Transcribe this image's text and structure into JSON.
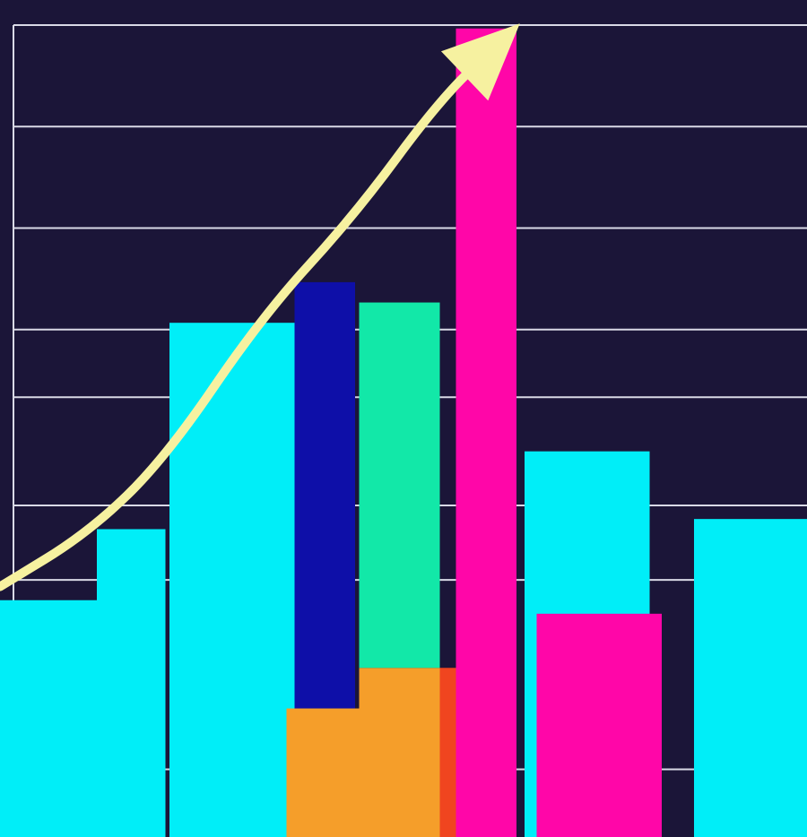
{
  "chart_data": {
    "type": "bar",
    "title": "",
    "xlabel": "",
    "ylabel": "",
    "ylim": [
      0,
      12
    ],
    "grid": true,
    "legend": "none",
    "gridlines": [
      1,
      3.8,
      4.9,
      6.5,
      7.5,
      9.0,
      10.5,
      12.0
    ],
    "bars": [
      {
        "x0": 0.0,
        "x1": 1.2,
        "bottom": 0,
        "value": 3.5,
        "color": "#00eef8"
      },
      {
        "x0": 1.2,
        "x1": 2.05,
        "bottom": 0,
        "value": 4.55,
        "color": "#00eef8"
      },
      {
        "x0": 2.1,
        "x1": 3.65,
        "bottom": 0,
        "value": 7.6,
        "color": "#00eef8"
      },
      {
        "x0": 3.65,
        "x1": 4.4,
        "bottom": 1.9,
        "value": 6.3,
        "color": "#0e0fa8"
      },
      {
        "x0": 3.55,
        "x1": 4.45,
        "bottom": 0,
        "value": 1.9,
        "color": "#f59e2a"
      },
      {
        "x0": 4.45,
        "x1": 5.45,
        "bottom": 0,
        "value": 2.5,
        "color": "#f59e2a"
      },
      {
        "x0": 4.45,
        "x1": 5.45,
        "bottom": 2.5,
        "value": 5.4,
        "color": "#12e8a8"
      },
      {
        "x0": 5.45,
        "x1": 5.65,
        "bottom": 0,
        "value": 2.5,
        "color": "#f0451f"
      },
      {
        "x0": 5.65,
        "x1": 6.4,
        "bottom": 0,
        "value": 11.95,
        "color": "#ff06a8"
      },
      {
        "x0": 6.5,
        "x1": 8.05,
        "bottom": 0,
        "value": 5.7,
        "color": "#00eef8"
      },
      {
        "x0": 6.65,
        "x1": 8.2,
        "bottom": 0,
        "value": 3.3,
        "color": "#ff06a8"
      },
      {
        "x0": 8.6,
        "x1": 10.0,
        "bottom": 0,
        "value": 4.7,
        "color": "#00eef8"
      }
    ],
    "trend_arrow": {
      "color": "#f6f1a0",
      "points": [
        [
          0.0,
          3.7
        ],
        [
          1.1,
          4.5
        ],
        [
          2.05,
          5.6
        ],
        [
          3.25,
          7.7
        ],
        [
          4.4,
          9.2
        ],
        [
          5.45,
          10.9
        ],
        [
          6.2,
          11.75
        ]
      ],
      "direction": "up-right"
    }
  }
}
